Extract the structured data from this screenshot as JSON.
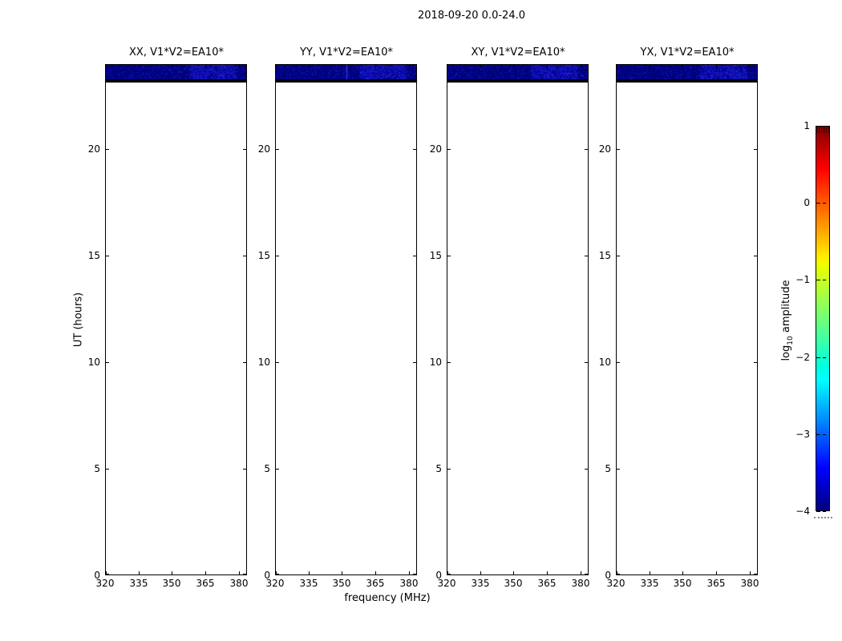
{
  "figure": {
    "title": "2018-09-20 0.0-24.0"
  },
  "axes": {
    "xlabel": "frequency (MHz)",
    "ylabel": "UT (hours)",
    "x_tick_labels": [
      "320",
      "335",
      "350",
      "365",
      "380"
    ],
    "y_tick_labels": [
      "0",
      "5",
      "10",
      "15",
      "20"
    ]
  },
  "panels": [
    {
      "id": "xx",
      "title": "XX, V1*V2=EA10*"
    },
    {
      "id": "yy",
      "title": "YY, V1*V2=EA10*"
    },
    {
      "id": "xy",
      "title": "XY, V1*V2=EA10*"
    },
    {
      "id": "yx",
      "title": "YX, V1*V2=EA10*"
    }
  ],
  "colorbar": {
    "label_prefix": "log",
    "label_sub": "10",
    "label_suffix": " amplitude",
    "tick_labels": [
      "1",
      "0",
      "−1",
      "−2",
      "−3",
      "−4"
    ],
    "gradient_stops": [
      [
        "#800000",
        "0%"
      ],
      [
        "#ff0000",
        "11%"
      ],
      [
        "#ffee00",
        "34%"
      ],
      [
        "#eeff00",
        "36%"
      ],
      [
        "#00ffe2",
        "62.5%"
      ],
      [
        "#00ffff",
        "66%"
      ],
      [
        "#0000ff",
        "89%"
      ],
      [
        "#000080",
        "100%"
      ]
    ]
  },
  "band_style": {
    "base_color": "#000181",
    "dark_speckles": [
      "#000060",
      "#00006e",
      "#000050"
    ],
    "bright_speckles": [
      "#1212c8",
      "#1c1ce0",
      "#0a0ab8",
      "#2828ea"
    ],
    "strip_color": "#020206",
    "yy_line_color": "#3c3cf2"
  },
  "chart_data": {
    "type": "heatmap",
    "title": "2018-09-20 0.0-24.0",
    "xlabel": "frequency (MHz)",
    "ylabel": "UT (hours)",
    "x_axis": {
      "range_mhz": [
        320,
        383.6
      ],
      "ticks": [
        320,
        335,
        350,
        365,
        380
      ]
    },
    "y_axis": {
      "range_hours": [
        0,
        24
      ],
      "ticks": [
        0,
        5,
        10,
        15,
        20
      ]
    },
    "color_axis": {
      "label": "log10 amplitude",
      "range": [
        -4,
        1
      ],
      "ticks": [
        1,
        0,
        -1,
        -2,
        -3,
        -4
      ],
      "colormap": "jet"
    },
    "panels": [
      {
        "polarization": "XX",
        "title": "XX, V1*V2=EA10*",
        "line_mhz": null
      },
      {
        "polarization": "YY",
        "title": "YY, V1*V2=EA10*",
        "line_mhz": 352
      },
      {
        "polarization": "XY",
        "title": "XY, V1*V2=EA10*",
        "line_mhz": null
      },
      {
        "polarization": "YX",
        "title": "YX, V1*V2=EA10*",
        "line_mhz": null
      }
    ],
    "coverage": {
      "data_band_ut_hours": [
        23.1,
        24.0
      ],
      "empty_below_ut_hours": 23.1,
      "band_log10_amplitude_range": [
        -4.0,
        -3.2
      ],
      "bright_speckle_cluster_mhz": [
        358,
        379
      ]
    }
  }
}
